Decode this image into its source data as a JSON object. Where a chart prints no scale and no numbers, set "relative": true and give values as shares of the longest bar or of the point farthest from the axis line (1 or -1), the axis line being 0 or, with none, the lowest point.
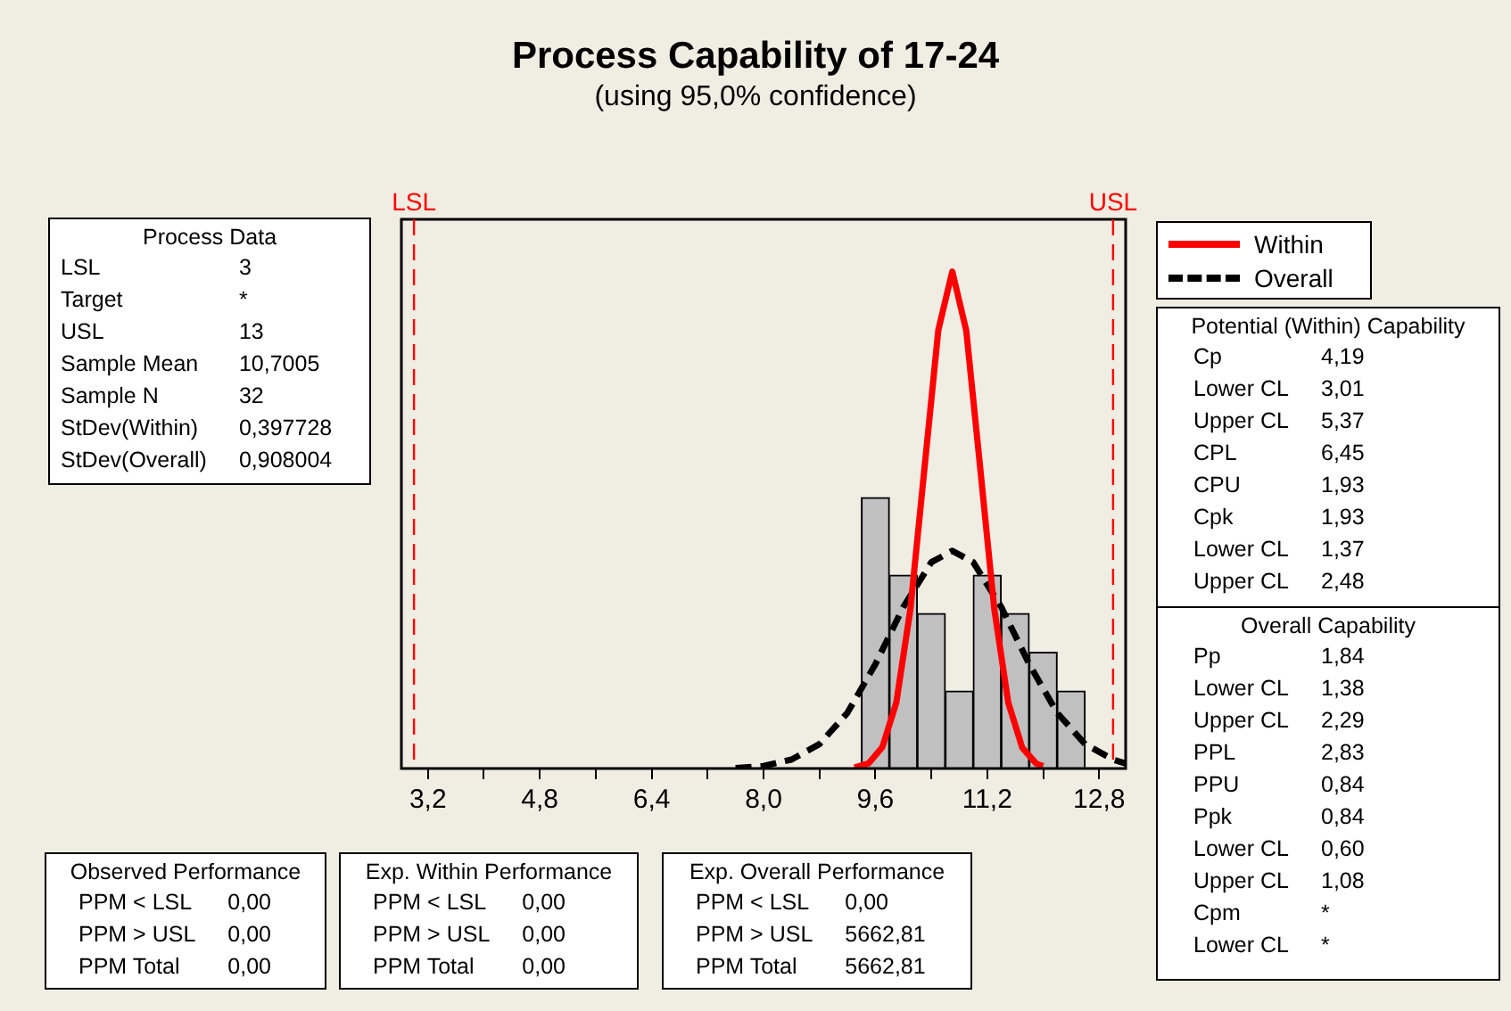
{
  "chart_data": [
    {
      "type": "histogram",
      "title": "Process Capability of 17-24",
      "subtitle": "(using 95,0% confidence)",
      "relative": true,
      "bins": [
        9.4,
        9.8,
        10.2,
        10.6,
        11.0,
        11.4,
        11.8,
        12.2,
        12.6
      ],
      "values": [
        0.545,
        0.389,
        0.312,
        0.156,
        0.389,
        0.312,
        0.234,
        0.156
      ],
      "color": "#c0c0c0",
      "xlim": [
        2.82,
        13.18
      ],
      "xticks": [
        {
          "value": 3.2,
          "label": "3,2"
        },
        {
          "value": 4.0,
          "label": null
        },
        {
          "value": 4.8,
          "label": "4,8"
        },
        {
          "value": 5.6,
          "label": null
        },
        {
          "value": 6.4,
          "label": "6,4"
        },
        {
          "value": 7.2,
          "label": null
        },
        {
          "value": 8.0,
          "label": "8,0"
        },
        {
          "value": 8.8,
          "label": null
        },
        {
          "value": 9.6,
          "label": "9,6"
        },
        {
          "value": 10.4,
          "label": null
        },
        {
          "value": 11.2,
          "label": "11,2"
        },
        {
          "value": 12.0,
          "label": null
        },
        {
          "value": 12.8,
          "label": "12,8"
        }
      ],
      "ref_lines": [
        {
          "axis": "x",
          "value": 3,
          "label": "LSL",
          "color": "#ff0000",
          "line_style": "dashed"
        },
        {
          "axis": "x",
          "value": 13,
          "label": "USL",
          "color": "#ff0000",
          "line_style": "dashed"
        }
      ],
      "legend": "right",
      "marker": "none",
      "series": [
        {
          "name": "Within",
          "type": "line",
          "color": "#ff0000",
          "line_style": "solid",
          "x": [
            9.3,
            9.5,
            9.7,
            9.9,
            10.1,
            10.3,
            10.5,
            10.7,
            10.9,
            11.1,
            11.3,
            11.5,
            11.7,
            11.9,
            12.0
          ],
          "values": [
            0.002,
            0.01,
            0.043,
            0.133,
            0.32,
            0.601,
            0.882,
            1.0,
            0.881,
            0.604,
            0.322,
            0.133,
            0.042,
            0.01,
            0.005
          ]
        },
        {
          "name": "Overall",
          "type": "line",
          "color": "#000000",
          "line_style": "dashed",
          "x": [
            7.6,
            8.0,
            8.4,
            8.8,
            9.2,
            9.6,
            10.0,
            10.4,
            10.7,
            11.0,
            11.4,
            11.8,
            12.2,
            12.6,
            13.0,
            13.18
          ],
          "values": [
            0.001,
            0.005,
            0.018,
            0.049,
            0.112,
            0.21,
            0.325,
            0.415,
            0.438,
            0.415,
            0.325,
            0.21,
            0.112,
            0.049,
            0.018,
            0.01
          ]
        }
      ]
    },
    {
      "type": "other",
      "title": "Process Data",
      "annotations": [
        "LSL",
        "3",
        "Target",
        "*",
        "USL",
        "13",
        "Sample Mean",
        "10,7005",
        "Sample N",
        "32",
        "StDev(Within)",
        "0,397728",
        "StDev(Overall)",
        "0,908004"
      ]
    },
    {
      "type": "other",
      "title": "Potential (Within) Capability",
      "annotations": [
        "Cp",
        "4,19",
        "Lower CL",
        "3,01",
        "Upper CL",
        "5,37",
        "CPL",
        "6,45",
        "CPU",
        "1,93",
        "Cpk",
        "1,93",
        "Lower CL",
        "1,37",
        "Upper CL",
        "2,48"
      ]
    },
    {
      "type": "other",
      "title": "Overall Capability",
      "annotations": [
        "Pp",
        "1,84",
        "Lower CL",
        "1,38",
        "Upper CL",
        "2,29",
        "PPL",
        "2,83",
        "PPU",
        "0,84",
        "Ppk",
        "0,84",
        "Lower CL",
        "0,60",
        "Upper CL",
        "1,08",
        "Cpm",
        "*",
        "Lower CL",
        "*"
      ]
    },
    {
      "type": "other",
      "title": "Observed Performance",
      "annotations": [
        "PPM < LSL",
        "0,00",
        "PPM > USL",
        "0,00",
        "PPM Total",
        "0,00"
      ]
    },
    {
      "type": "other",
      "title": "Exp. Within Performance",
      "annotations": [
        "PPM < LSL",
        "0,00",
        "PPM > USL",
        "0,00",
        "PPM Total",
        "0,00"
      ]
    },
    {
      "type": "other",
      "title": "Exp. Overall Performance",
      "annotations": [
        "PPM < LSL",
        "0,00",
        "PPM > USL",
        "5662,81",
        "PPM Total",
        "5662,81"
      ]
    }
  ]
}
